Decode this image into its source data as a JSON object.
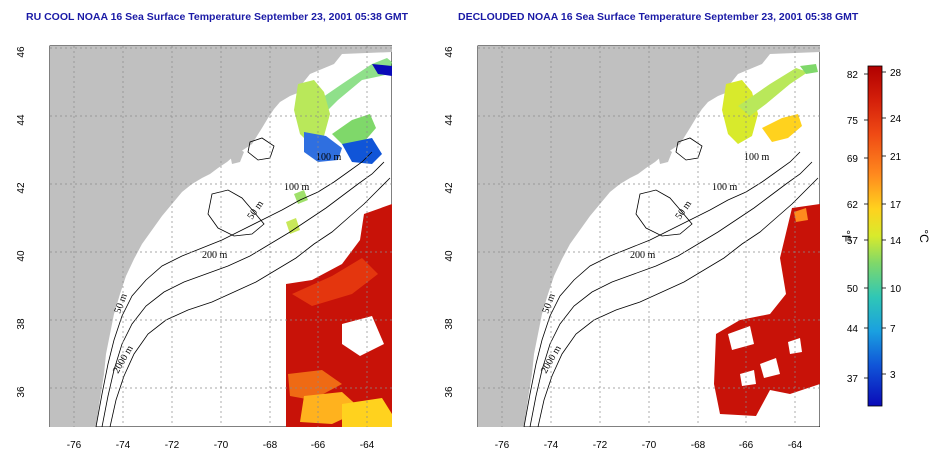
{
  "titles": {
    "left": "RU COOL NOAA 16 Sea Surface Temperature September 23, 2001 05:38 GMT",
    "right": "DECLOUDED NOAA 16 Sea Surface Temperature September 23, 2001 05:38 GMT"
  },
  "map": {
    "lat_ticks": [
      "36",
      "38",
      "40",
      "42",
      "44",
      "46"
    ],
    "lon_ticks": [
      "-76",
      "-74",
      "-72",
      "-70",
      "-68",
      "-66",
      "-64"
    ],
    "contour_labels": [
      "50 m",
      "100 m",
      "100 m",
      "200 m",
      "50 m",
      "2000 m"
    ],
    "colors": {
      "land": "#c0c0c0",
      "ocean": "#ffffff",
      "grid": "#8a8a8a",
      "contour": "#000000"
    }
  },
  "colorbar": {
    "fahrenheit_ticks": [
      "82",
      "75",
      "69",
      "62",
      "57",
      "50",
      "44",
      "37"
    ],
    "celsius_ticks": [
      "28",
      "24",
      "21",
      "17",
      "14",
      "10",
      "7",
      "3"
    ],
    "fahrenheit_label": "°F",
    "celsius_label": "°C",
    "gradient": [
      "#b00000",
      "#d41f0a",
      "#ef4a14",
      "#ff8a1e",
      "#ffd21e",
      "#d8ea2c",
      "#7fd86a",
      "#2fc7b6",
      "#1aa0e0",
      "#1055d8",
      "#0a0ab8"
    ]
  }
}
